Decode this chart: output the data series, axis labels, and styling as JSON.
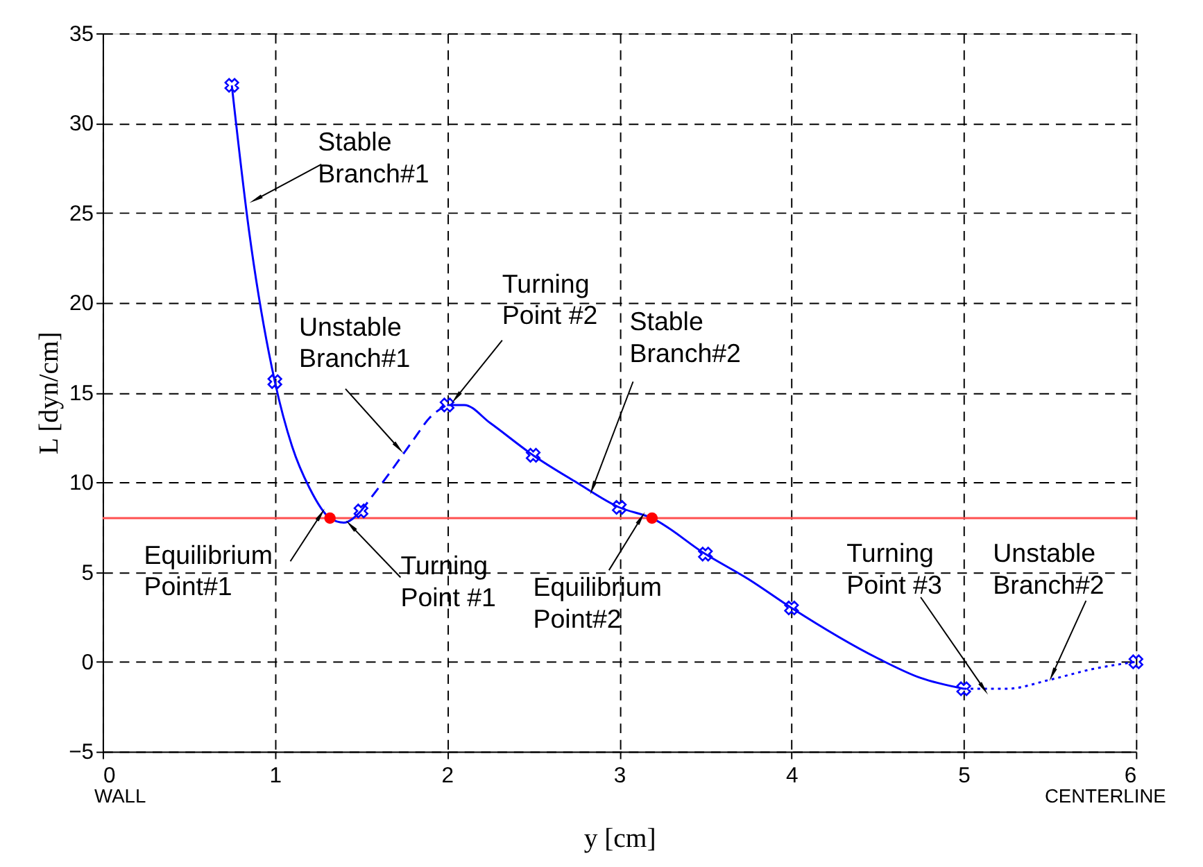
{
  "chart_data": {
    "type": "line",
    "xlabel": "y  [cm]",
    "ylabel": "L  [dyn/cm]",
    "xlim": [
      0,
      6
    ],
    "xticks": [
      0,
      1,
      2,
      3,
      4,
      5,
      6
    ],
    "ylim": [
      -5,
      35
    ],
    "yticks": [
      -5,
      0,
      5,
      10,
      15,
      20,
      25,
      30,
      35
    ],
    "grid": true,
    "series": [
      {
        "color": "#0000ff",
        "line_style": "solid",
        "marker": "none",
        "x": [
          0.75,
          0.85,
          1.0,
          1.1,
          1.2,
          1.32,
          1.4,
          1.5
        ],
        "values": [
          32.1,
          24.0,
          15.6,
          12.0,
          9.7,
          8.0,
          7.75,
          8.4
        ]
      },
      {
        "color": "#0000ff",
        "line_style": "dashed",
        "marker": "none",
        "x": [
          1.5,
          1.65,
          1.8,
          1.9,
          2.0
        ],
        "values": [
          8.4,
          10.3,
          12.3,
          13.6,
          14.3
        ]
      },
      {
        "color": "#0000ff",
        "line_style": "solid",
        "marker": "none",
        "x": [
          2.0,
          2.1,
          2.25,
          2.5,
          2.75,
          3.0,
          3.19,
          3.5,
          3.75,
          4.0,
          4.5,
          4.75,
          5.0
        ],
        "values": [
          14.3,
          14.3,
          13.3,
          11.5,
          10.0,
          8.6,
          8.0,
          6.0,
          4.6,
          3.0,
          0.2,
          -0.9,
          -1.5
        ]
      },
      {
        "color": "#0000ff",
        "line_style": "dotted",
        "marker": "none",
        "x": [
          5.0,
          5.25,
          5.5,
          5.75,
          6.0
        ],
        "values": [
          -1.5,
          -1.5,
          -1.0,
          -0.4,
          0.0
        ]
      },
      {
        "type": "scatter",
        "color": "#0000ff",
        "marker": "cross",
        "x": [
          0.75,
          1.0,
          1.5,
          2.0,
          2.5,
          3.0,
          3.5,
          4.0,
          5.0,
          6.0
        ],
        "values": [
          32.1,
          15.6,
          8.4,
          14.3,
          11.5,
          8.6,
          6.0,
          3.0,
          -1.5,
          0.0
        ]
      },
      {
        "type": "scatter",
        "color": "#ff0000",
        "marker": "circle",
        "x": [
          1.32,
          3.19
        ],
        "values": [
          8.0,
          8.0
        ]
      }
    ],
    "ref_lines": [
      {
        "axis": "y",
        "value": 8,
        "color": "#ff5050"
      }
    ],
    "annotations": [
      {
        "text": "Stable\nBranch#1",
        "x": 0.9,
        "y": 25.8
      },
      {
        "text": "Unstable\nBranch#1",
        "x": 1.71,
        "y": 12.0
      },
      {
        "text": "Turning\nPoint #2",
        "x": 2.06,
        "y": 14.8
      },
      {
        "text": "Stable\nBranch#2",
        "x": 2.85,
        "y": 9.8
      },
      {
        "text": "Equilibrium\nPoint#1",
        "x": 1.26,
        "y": 8.1
      },
      {
        "text": "Turning\nPoint #1",
        "x": 1.45,
        "y": 7.5
      },
      {
        "text": "Equilibrium\nPoint#2",
        "x": 3.12,
        "y": 7.9
      },
      {
        "text": "Turning\nPoint #3",
        "x": 5.11,
        "y": -1.4
      },
      {
        "text": "Unstable\nBranch#2",
        "x": 5.52,
        "y": -0.6
      },
      "WALL",
      "CENTERLINE"
    ]
  }
}
